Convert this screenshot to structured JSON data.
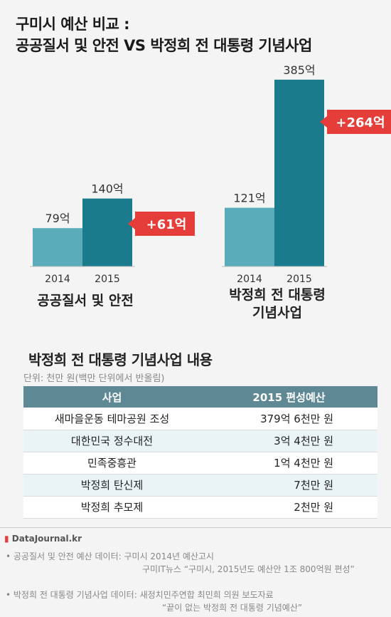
{
  "title": {
    "line1": "구미시 예산 비교 :",
    "line2": "공공질서 및 안전 VS 박정희 전 대통령 기념사업"
  },
  "colors": {
    "bar_2014": "#5aacbb",
    "bar_2015": "#1a7b8c",
    "badge": "#e53e3a"
  },
  "chart_data": [
    {
      "type": "bar",
      "categories": [
        "2014",
        "2015"
      ],
      "values": [
        79,
        140
      ],
      "value_labels": [
        "79억",
        "140억"
      ],
      "diff_label": "+61억",
      "label": "공공질서 및 안전"
    },
    {
      "type": "bar",
      "categories": [
        "2014",
        "2015"
      ],
      "values": [
        121,
        385
      ],
      "value_labels": [
        "121억",
        "385억"
      ],
      "diff_label": "+264억",
      "label_line1": "박정희 전 대통령",
      "label_line2": "기념사업"
    }
  ],
  "section": {
    "title": "박정희 전 대통령 기념사업 내용",
    "unit_note": "단위: 천만 원(백만 단위에서 반올림)",
    "columns": [
      "사업",
      "2015 편성예산"
    ],
    "rows": [
      [
        "새마을운동 테마공원 조성",
        "379억 6천만 원"
      ],
      [
        "대한민국 정수대전",
        "3억 4천만 원"
      ],
      [
        "민족중흥관",
        "1억 4천만 원"
      ],
      [
        "박정희 탄신제",
        "7천만 원"
      ],
      [
        "박정희 추모제",
        "2천만 원"
      ]
    ]
  },
  "footer": {
    "brand": "DataJournal.kr",
    "source1_line1": "•  공공질서 및 안전 예산 데이터: 구미시 2014년 예산고시",
    "source1_line2": "구미IT뉴스 “구미시, 2015년도 예산안 1조 800억원 편성”",
    "source2_line1": "•  박정희 전 대통령 기념사업 데이터: 새정치민주연합 최민희 의원 보도자료",
    "source2_line2": "“끝이 없는 박정희 전 대통령 기념예산”"
  }
}
